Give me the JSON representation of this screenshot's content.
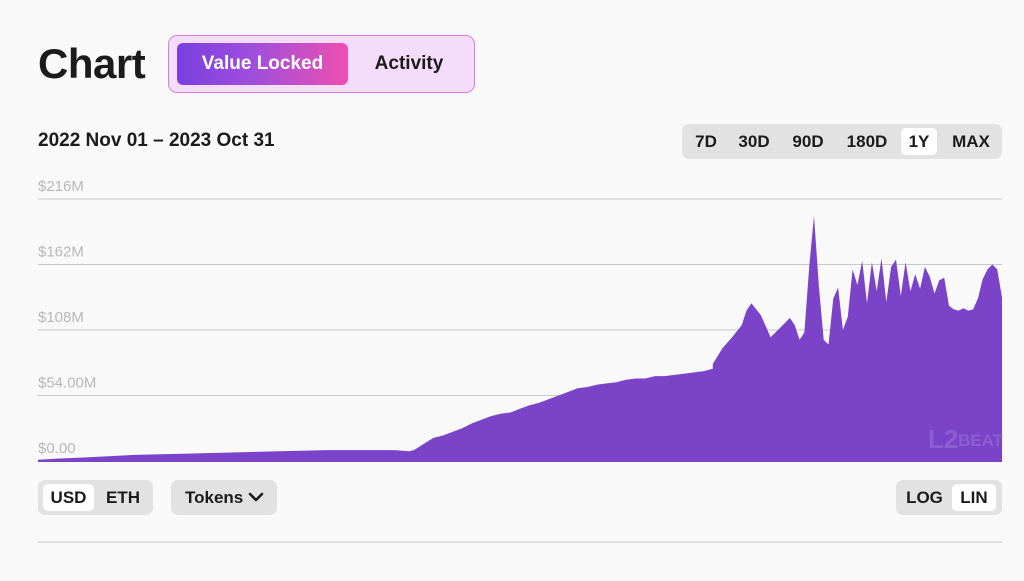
{
  "header": {
    "title": "Chart"
  },
  "view_switch": {
    "active_label": "Value Locked",
    "other_label": "Activity"
  },
  "date_range": "2022 Nov 01 – 2023 Oct 31",
  "time_ranges": [
    "7D",
    "30D",
    "90D",
    "180D",
    "1Y",
    "MAX"
  ],
  "selected_time_range": "1Y",
  "currency_toggle": {
    "options": [
      "USD",
      "ETH"
    ],
    "selected": "USD"
  },
  "tokens_button": {
    "label": "Tokens"
  },
  "scale_toggle": {
    "options": [
      "LOG",
      "LIN"
    ],
    "selected": "LIN"
  },
  "watermark": "L2BEAT",
  "colors": {
    "area_fill": "#7a43c8",
    "accent_gradient_start": "#7a3ee0",
    "accent_gradient_end": "#ee4fb0",
    "gridline": "#c8c8c8"
  },
  "chart_data": {
    "type": "area",
    "series": [
      {
        "x": [
          0.0,
          0.02,
          0.05,
          0.1,
          0.15,
          0.2,
          0.25,
          0.3,
          0.35,
          0.37,
          0.385,
          0.39,
          0.4,
          0.41,
          0.42,
          0.43,
          0.44,
          0.45,
          0.46,
          0.47,
          0.48,
          0.49,
          0.5,
          0.51,
          0.52,
          0.53,
          0.54,
          0.55,
          0.56,
          0.57,
          0.58,
          0.59,
          0.6,
          0.61,
          0.62,
          0.63,
          0.64,
          0.65,
          0.66,
          0.67,
          0.68,
          0.69,
          0.7,
          0.7,
          0.71,
          0.72,
          0.73,
          0.735,
          0.74,
          0.75,
          0.76,
          0.77,
          0.78,
          0.785,
          0.79,
          0.795,
          0.8,
          0.805,
          0.81,
          0.815,
          0.82,
          0.825,
          0.83,
          0.835,
          0.84,
          0.845,
          0.85,
          0.855,
          0.86,
          0.865,
          0.87,
          0.875,
          0.88,
          0.885,
          0.89,
          0.895,
          0.9,
          0.905,
          0.91,
          0.915,
          0.92,
          0.925,
          0.93,
          0.935,
          0.94,
          0.945,
          0.95,
          0.955,
          0.96,
          0.965,
          0.97,
          0.975,
          0.98,
          0.985,
          0.99,
          0.995,
          1.0
        ],
        "values": [
          1,
          2,
          3,
          5,
          6,
          7,
          8,
          9,
          9,
          9,
          8,
          9,
          14,
          19,
          21,
          24,
          27,
          31,
          34,
          37,
          39,
          40,
          43,
          46,
          48,
          51,
          54,
          57,
          60,
          61,
          63,
          64,
          65,
          67,
          68,
          68,
          70,
          70,
          71,
          72,
          73,
          74,
          76,
          80,
          93,
          102,
          112,
          124,
          130,
          120,
          102,
          110,
          118,
          112,
          100,
          106,
          160,
          202,
          145,
          100,
          96,
          134,
          143,
          108,
          119,
          158,
          145,
          165,
          130,
          164,
          140,
          167,
          131,
          160,
          166,
          136,
          164,
          140,
          154,
          142,
          160,
          152,
          138,
          149,
          151,
          128,
          125,
          124,
          126,
          124,
          125,
          134,
          150,
          158,
          162,
          158,
          135
        ]
      }
    ],
    "y_ticks": [
      "$216M",
      "$162M",
      "$108M",
      "$54.00M",
      "$0.00"
    ],
    "ylim": [
      0,
      216
    ],
    "y_unit": "M USD",
    "grid": true,
    "legend": "none",
    "title": "",
    "xlabel": "",
    "ylabel": ""
  }
}
